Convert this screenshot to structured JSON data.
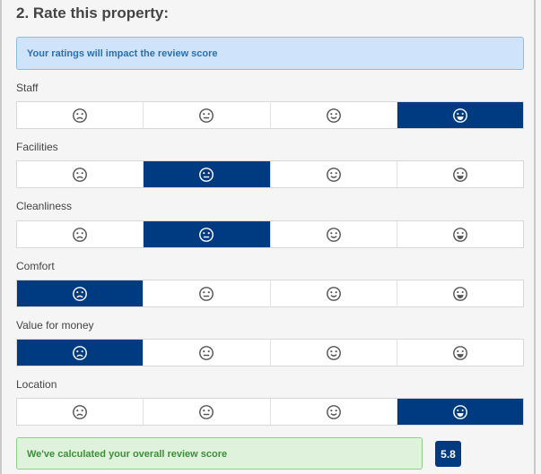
{
  "section": {
    "title": "2. Rate this property:",
    "info_text": "Your ratings will impact the review score"
  },
  "categories": [
    {
      "label": "Staff",
      "selected_index": 3
    },
    {
      "label": "Facilities",
      "selected_index": 1
    },
    {
      "label": "Cleanliness",
      "selected_index": 1
    },
    {
      "label": "Comfort",
      "selected_index": 0
    },
    {
      "label": "Value for money",
      "selected_index": 0
    },
    {
      "label": "Location",
      "selected_index": 3
    }
  ],
  "rating_options": [
    {
      "icon": "sad-face-icon"
    },
    {
      "icon": "neutral-face-icon"
    },
    {
      "icon": "smile-face-icon"
    },
    {
      "icon": "grin-face-icon"
    }
  ],
  "summary": {
    "text": "We've calculated your overall review score",
    "score": "5.8"
  },
  "colors": {
    "selected": "#003a80",
    "info_bg": "#cfe4fa",
    "success_bg": "#dff2dc"
  }
}
